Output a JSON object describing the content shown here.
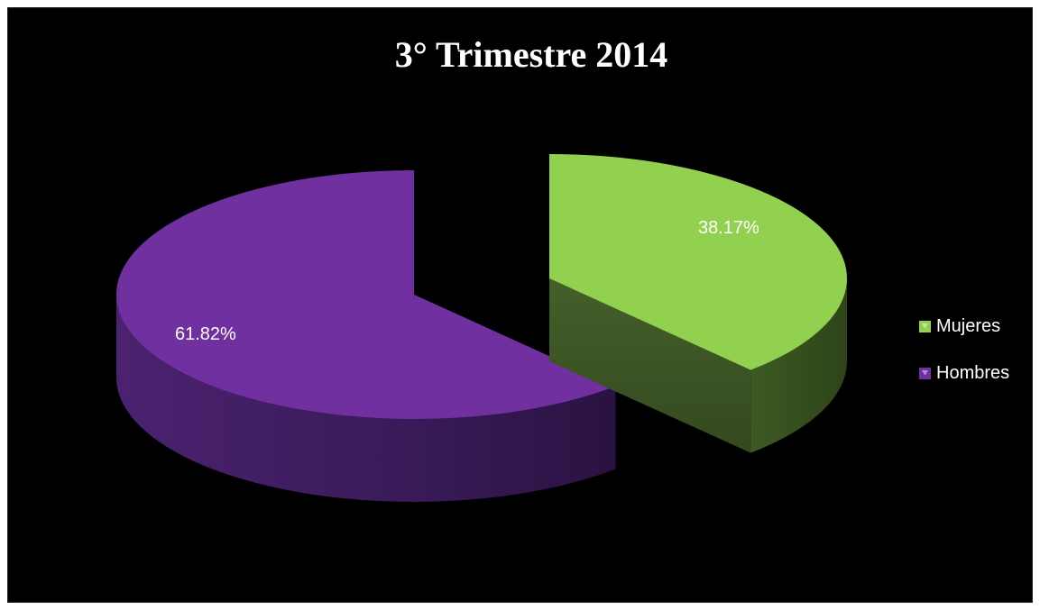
{
  "chart_data": {
    "type": "pie",
    "title": "3° Trimestre 2014",
    "slices": [
      {
        "name": "Mujeres",
        "value": 38.17,
        "label": "38.17%",
        "color": "#92d050"
      },
      {
        "name": "Hombres",
        "value": 61.82,
        "label": "61.82%",
        "color": "#7030a0"
      }
    ],
    "legend_position": "right",
    "style": "3d-exploded"
  },
  "legend": [
    {
      "label": "Mujeres",
      "color": "#92d050"
    },
    {
      "label": "Hombres",
      "color": "#7030a0"
    }
  ],
  "background": "#000000"
}
